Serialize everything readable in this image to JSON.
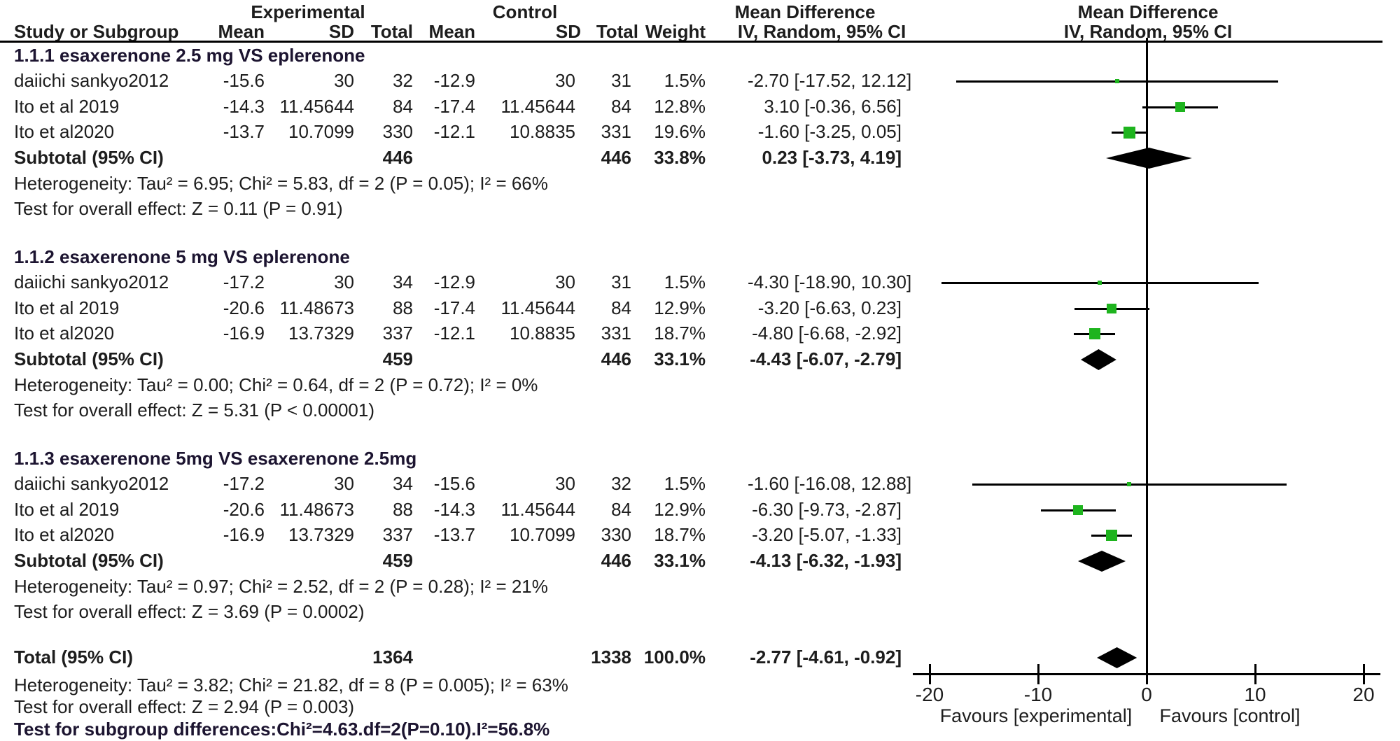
{
  "chart_data": {
    "type": "forest",
    "effect_measure": "Mean Difference",
    "method": "IV, Random, 95% CI",
    "columns": {
      "study": "Study or Subgroup",
      "group_experimental": "Experimental",
      "group_control": "Control",
      "mean": "Mean",
      "sd": "SD",
      "total": "Total",
      "weight": "Weight",
      "md_line1": "Mean Difference",
      "md_line2": "IV, Random, 95% CI"
    },
    "groups": [
      {
        "label": "1.1.1 esaxerenone 2.5 mg VS eplerenone",
        "studies": [
          {
            "name": "daiichi sankyo2012",
            "mean_e": "-15.6",
            "sd_e": "30",
            "total_e": "32",
            "mean_c": "-12.9",
            "sd_c": "30",
            "total_c": "31",
            "weight": "1.5%",
            "weight_val": 1.5,
            "ci_text": "-2.70 [-17.52, 12.12]",
            "est": -2.7,
            "lo": -17.52,
            "hi": 12.12
          },
          {
            "name": "Ito et al 2019",
            "mean_e": "-14.3",
            "sd_e": "11.45644",
            "total_e": "84",
            "mean_c": "-17.4",
            "sd_c": "11.45644",
            "total_c": "84",
            "weight": "12.8%",
            "weight_val": 12.8,
            "ci_text": "3.10 [-0.36, 6.56]",
            "est": 3.1,
            "lo": -0.36,
            "hi": 6.56
          },
          {
            "name": "Ito et al2020",
            "mean_e": "-13.7",
            "sd_e": "10.7099",
            "total_e": "330",
            "mean_c": "-12.1",
            "sd_c": "10.8835",
            "total_c": "331",
            "weight": "19.6%",
            "weight_val": 19.6,
            "ci_text": "-1.60 [-3.25, 0.05]",
            "est": -1.6,
            "lo": -3.25,
            "hi": 0.05
          }
        ],
        "subtotal": {
          "name": "Subtotal (95% CI)",
          "total_e": "446",
          "total_c": "446",
          "weight": "33.8%",
          "ci_text": "0.23 [-3.73, 4.19]",
          "est": 0.23,
          "lo": -3.73,
          "hi": 4.19
        },
        "heterogeneity": "Heterogeneity: Tau² = 6.95; Chi² = 5.83, df = 2 (P = 0.05); I² = 66%",
        "overall_effect": "Test for overall effect: Z = 0.11 (P = 0.91)"
      },
      {
        "label": "1.1.2 esaxerenone 5 mg VS eplerenone",
        "studies": [
          {
            "name": "daiichi sankyo2012",
            "mean_e": "-17.2",
            "sd_e": "30",
            "total_e": "34",
            "mean_c": "-12.9",
            "sd_c": "30",
            "total_c": "31",
            "weight": "1.5%",
            "weight_val": 1.5,
            "ci_text": "-4.30 [-18.90, 10.30]",
            "est": -4.3,
            "lo": -18.9,
            "hi": 10.3
          },
          {
            "name": "Ito et al 2019",
            "mean_e": "-20.6",
            "sd_e": "11.48673",
            "total_e": "88",
            "mean_c": "-17.4",
            "sd_c": "11.45644",
            "total_c": "84",
            "weight": "12.9%",
            "weight_val": 12.9,
            "ci_text": "-3.20 [-6.63, 0.23]",
            "est": -3.2,
            "lo": -6.63,
            "hi": 0.23
          },
          {
            "name": "Ito et al2020",
            "mean_e": "-16.9",
            "sd_e": "13.7329",
            "total_e": "337",
            "mean_c": "-12.1",
            "sd_c": "10.8835",
            "total_c": "331",
            "weight": "18.7%",
            "weight_val": 18.7,
            "ci_text": "-4.80 [-6.68, -2.92]",
            "est": -4.8,
            "lo": -6.68,
            "hi": -2.92
          }
        ],
        "subtotal": {
          "name": "Subtotal (95% CI)",
          "total_e": "459",
          "total_c": "446",
          "weight": "33.1%",
          "ci_text": "-4.43 [-6.07, -2.79]",
          "est": -4.43,
          "lo": -6.07,
          "hi": -2.79
        },
        "heterogeneity": "Heterogeneity: Tau² = 0.00; Chi² = 0.64, df = 2 (P = 0.72); I² = 0%",
        "overall_effect": "Test for overall effect: Z = 5.31 (P < 0.00001)"
      },
      {
        "label": "1.1.3 esaxerenone 5mg VS esaxerenone 2.5mg",
        "studies": [
          {
            "name": "daiichi sankyo2012",
            "mean_e": "-17.2",
            "sd_e": "30",
            "total_e": "34",
            "mean_c": "-15.6",
            "sd_c": "30",
            "total_c": "32",
            "weight": "1.5%",
            "weight_val": 1.5,
            "ci_text": "-1.60 [-16.08, 12.88]",
            "est": -1.6,
            "lo": -16.08,
            "hi": 12.88
          },
          {
            "name": "Ito et al 2019",
            "mean_e": "-20.6",
            "sd_e": "11.48673",
            "total_e": "88",
            "mean_c": "-14.3",
            "sd_c": "11.45644",
            "total_c": "84",
            "weight": "12.9%",
            "weight_val": 12.9,
            "ci_text": "-6.30 [-9.73, -2.87]",
            "est": -6.3,
            "lo": -9.73,
            "hi": -2.87
          },
          {
            "name": "Ito et al2020",
            "mean_e": "-16.9",
            "sd_e": "13.7329",
            "total_e": "337",
            "mean_c": "-13.7",
            "sd_c": "10.7099",
            "total_c": "330",
            "weight": "18.7%",
            "weight_val": 18.7,
            "ci_text": "-3.20 [-5.07, -1.33]",
            "est": -3.2,
            "lo": -5.07,
            "hi": -1.33
          }
        ],
        "subtotal": {
          "name": "Subtotal (95% CI)",
          "total_e": "459",
          "total_c": "446",
          "weight": "33.1%",
          "ci_text": "-4.13 [-6.32, -1.93]",
          "est": -4.13,
          "lo": -6.32,
          "hi": -1.93
        },
        "heterogeneity": "Heterogeneity: Tau² = 0.97; Chi² = 2.52, df = 2 (P = 0.28); I² = 21%",
        "overall_effect": "Test for overall effect: Z = 3.69 (P = 0.0002)"
      }
    ],
    "total": {
      "name": "Total (95% CI)",
      "total_e": "1364",
      "total_c": "1338",
      "weight": "100.0%",
      "ci_text": "-2.77 [-4.61, -0.92]",
      "est": -2.77,
      "lo": -4.61,
      "hi": -0.92,
      "heterogeneity": "Heterogeneity: Tau² = 3.82; Chi² = 21.82, df = 8 (P = 0.005); I² = 63%",
      "overall_effect": "Test for overall effect: Z = 2.94 (P = 0.003)",
      "subgroup_test": "Test for subgroup differences:Chi²=4.63.df=2(P=0.10).I²=56.8%"
    },
    "axis": {
      "min": -20,
      "max": 20,
      "ticks": [
        "-20",
        "-10",
        "0",
        "10",
        "20"
      ],
      "tick_values": [
        -20,
        -10,
        0,
        10,
        20
      ],
      "favours_left": "Favours [experimental]",
      "favours_right": "Favours [control]"
    },
    "colors": {
      "marker_green": "#1eb41e",
      "diamond_black": "#000000",
      "line_black": "#000000",
      "text": "#1d1d1d",
      "section_label": "#1c1430"
    }
  }
}
